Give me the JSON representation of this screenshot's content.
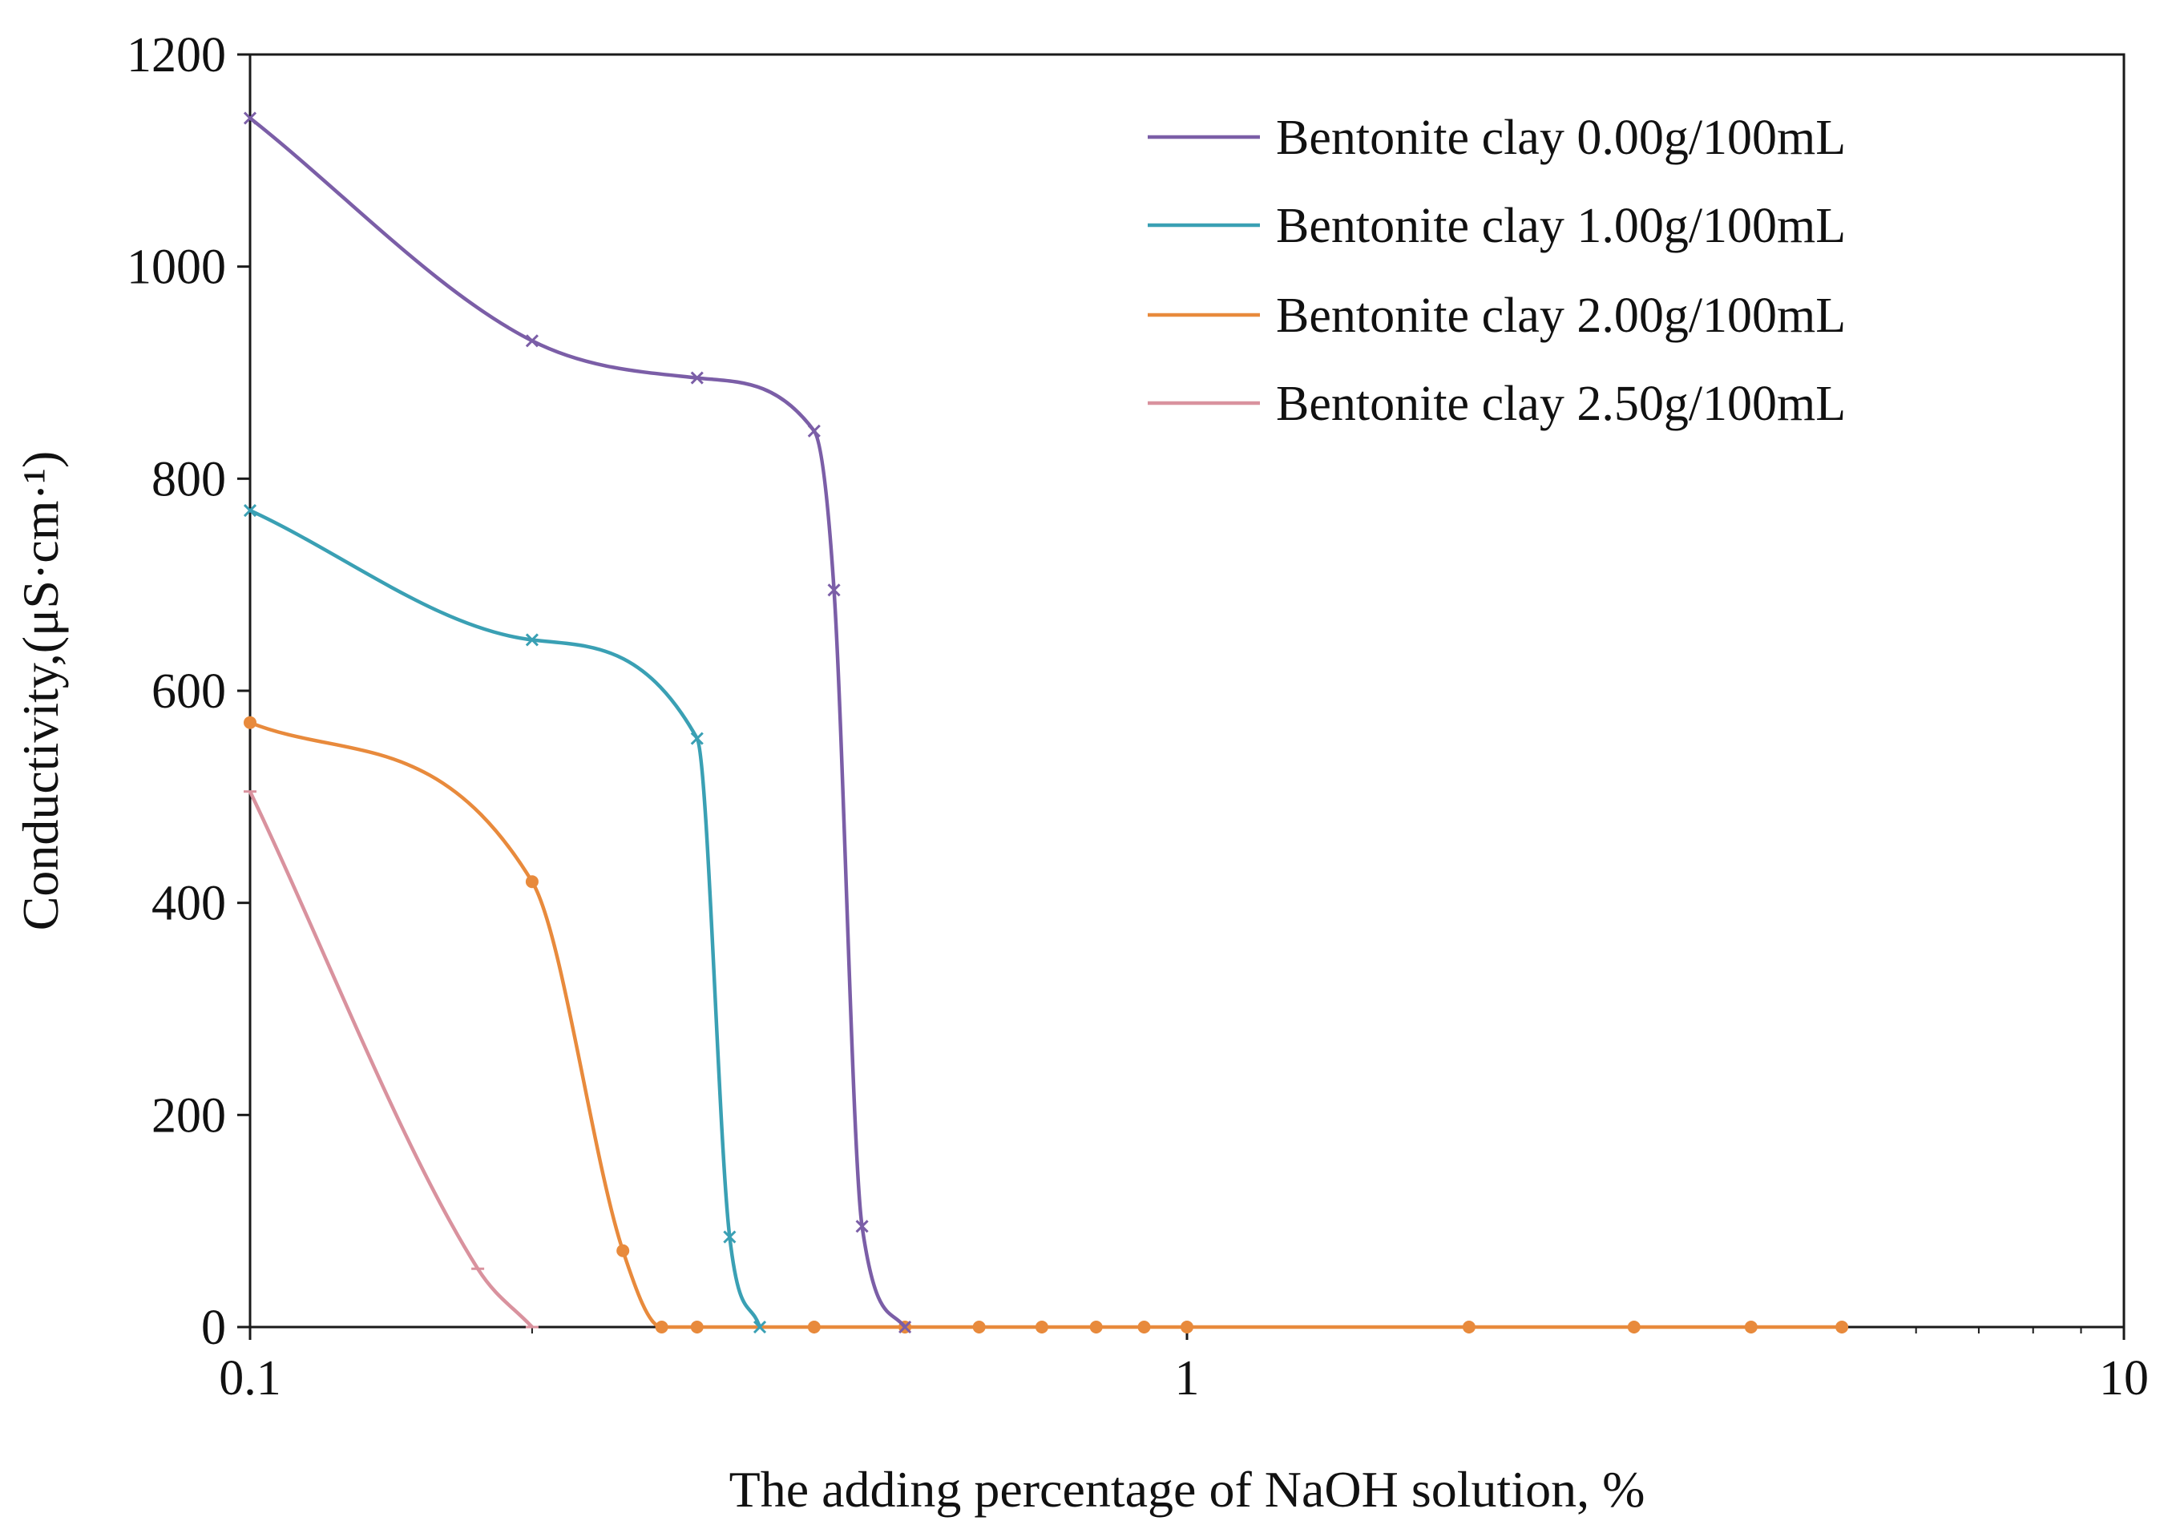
{
  "chart_data": {
    "type": "line",
    "title": "",
    "xlabel": "The adding percentage of NaOH solution, %",
    "ylabel": "Conductivity,(μS·cm·¹)",
    "xscale": "log",
    "xlim": [
      0.1,
      10
    ],
    "ylim": [
      0,
      1200
    ],
    "xticks": [
      0.1,
      1,
      10
    ],
    "xtick_labels": [
      "0.1",
      "1",
      "10"
    ],
    "yticks": [
      0,
      200,
      400,
      600,
      800,
      1000,
      1200
    ],
    "ytick_labels": [
      "0",
      "200",
      "400",
      "600",
      "800",
      "1000",
      "1200"
    ],
    "grid": false,
    "legend_position": "top-right",
    "series": [
      {
        "name": "Bentonite clay 0.00g/100mL",
        "color": "#7b5ea7",
        "marker": "x",
        "x": [
          0.1,
          0.2,
          0.3,
          0.4,
          0.42,
          0.45,
          0.5
        ],
        "y": [
          1140,
          930,
          895,
          845,
          695,
          95,
          0
        ]
      },
      {
        "name": "Bentonite clay 1.00g/100mL",
        "color": "#3aa0b4",
        "marker": "x",
        "x": [
          0.1,
          0.2,
          0.3,
          0.325,
          0.35
        ],
        "y": [
          770,
          648,
          555,
          85,
          0
        ]
      },
      {
        "name": "Bentonite clay 2.00g/100mL",
        "color": "#e88a3c",
        "marker": "dot",
        "x": [
          0.1,
          0.2,
          0.25,
          0.275,
          0.3,
          0.4,
          0.5,
          0.6,
          0.7,
          0.8,
          0.9,
          1.0,
          2.0,
          3.0,
          4.0,
          5.0
        ],
        "y": [
          570,
          420,
          72,
          0,
          0,
          0,
          0,
          0,
          0,
          0,
          0,
          0,
          0,
          0,
          0,
          0
        ]
      },
      {
        "name": "Bentonite clay 2.50g/100mL",
        "color": "#d9929e",
        "marker": "dash",
        "x": [
          0.1,
          0.175,
          0.2
        ],
        "y": [
          505,
          55,
          0
        ]
      }
    ]
  }
}
